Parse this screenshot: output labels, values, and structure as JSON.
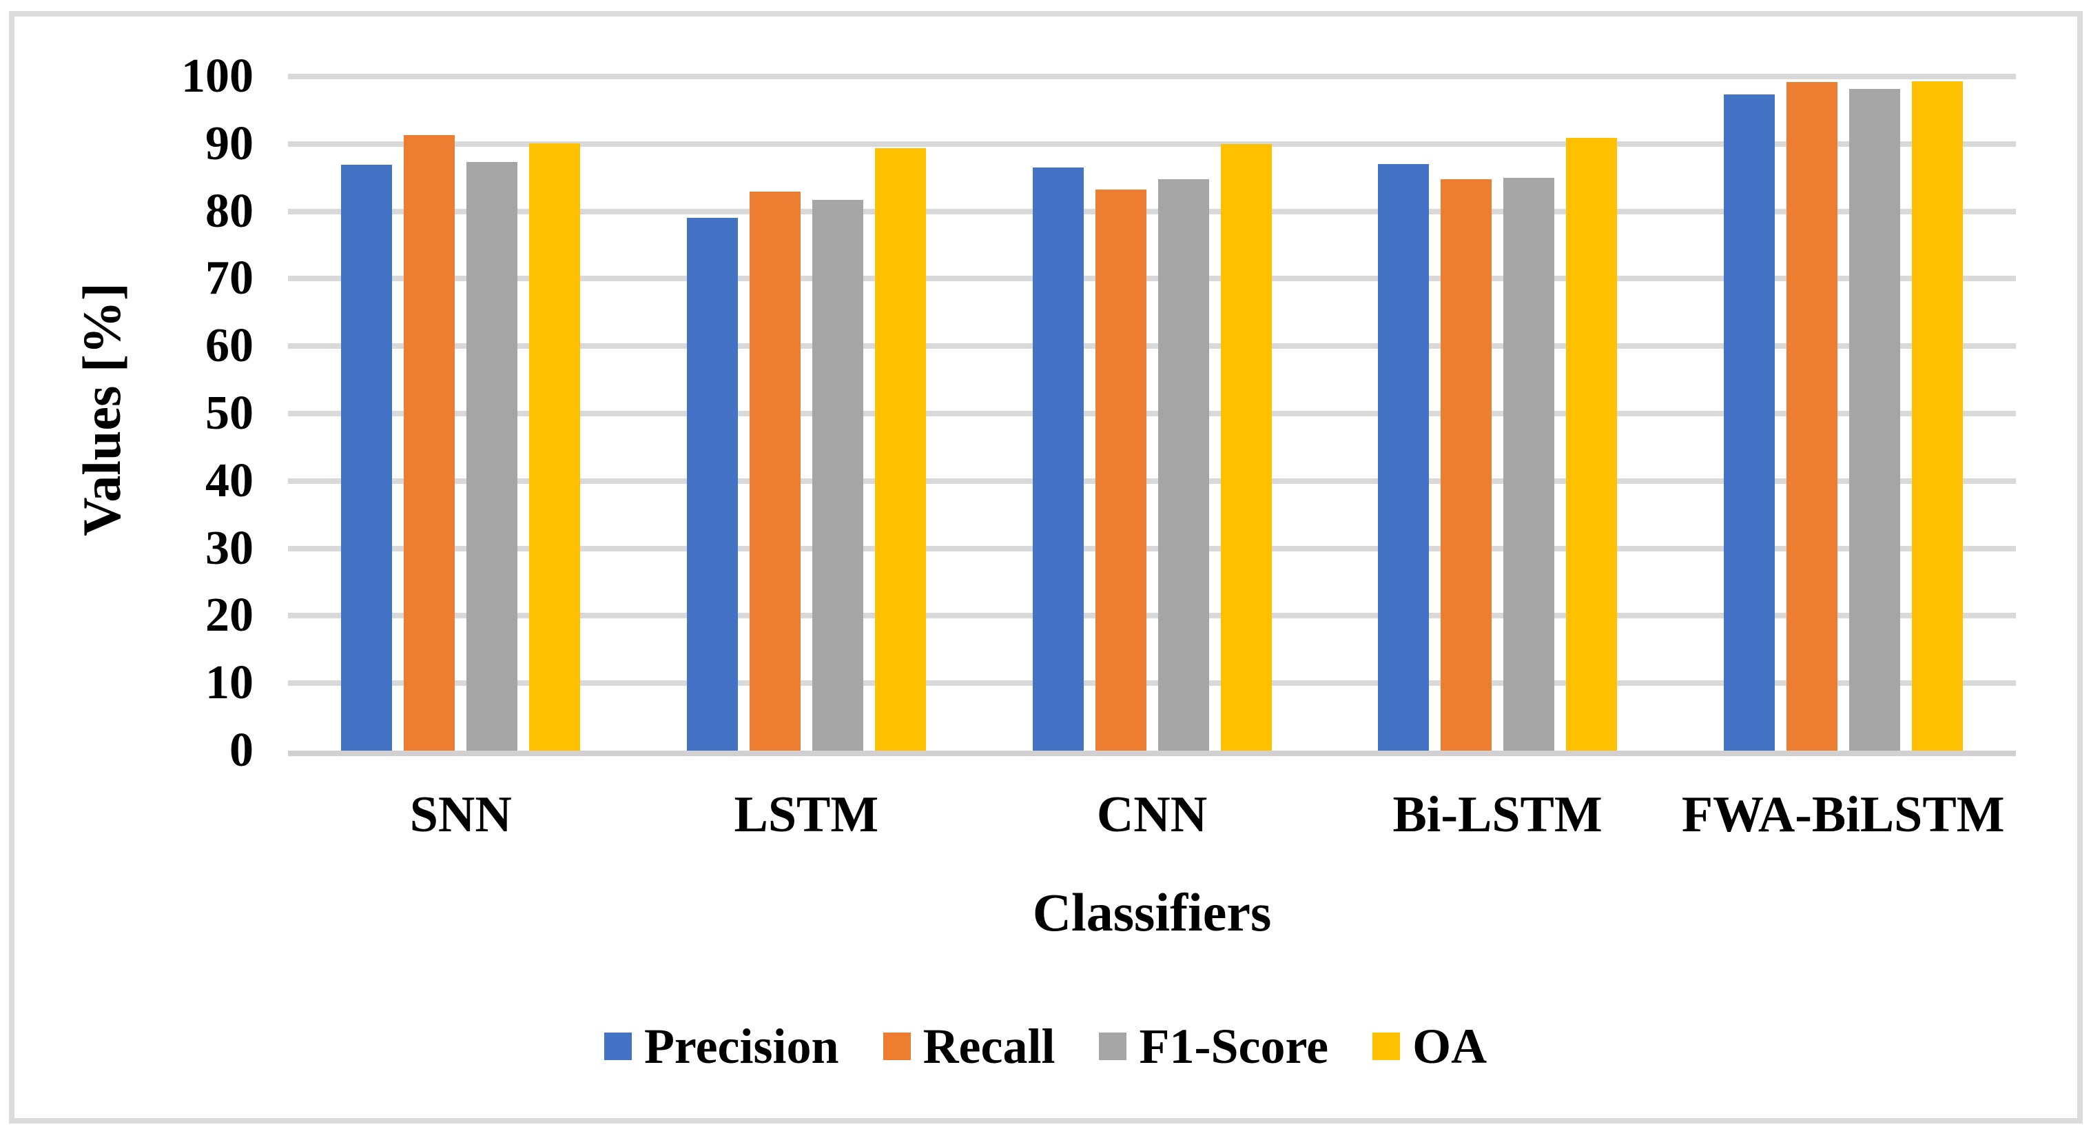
{
  "figure": {
    "background": "#FFFFFF",
    "border_color": "#DBDBDB"
  },
  "chart_data": {
    "type": "bar",
    "title": "",
    "categories": [
      "SNN",
      "LSTM",
      "CNN",
      "Bi-LSTM",
      "FWA-BiLSTM"
    ],
    "series": [
      {
        "name": "Precision",
        "color": "#4472C4",
        "values": [
          86.9,
          79.0,
          86.5,
          87.0,
          97.3
        ]
      },
      {
        "name": "Recall",
        "color": "#ED7D31",
        "values": [
          91.3,
          82.9,
          83.2,
          84.8,
          99.2
        ]
      },
      {
        "name": "F1-Score",
        "color": "#A5A5A5",
        "values": [
          87.3,
          81.7,
          84.8,
          85.0,
          98.2
        ]
      },
      {
        "name": "OA",
        "color": "#FFC000",
        "values": [
          90.1,
          89.4,
          90.0,
          90.9,
          99.3
        ]
      }
    ],
    "xlabel": "Classifiers",
    "ylabel": "Values [%]",
    "ylim": [
      0,
      100
    ],
    "ytick_step": 10,
    "yticks": [
      "0",
      "10",
      "20",
      "30",
      "40",
      "50",
      "60",
      "70",
      "80",
      "90",
      "100"
    ],
    "grid": true,
    "gridline_color": "#D9D9D9",
    "axis_line_color": "#D2D0D0",
    "legend_position": "bottom",
    "legend": [
      "Precision",
      "Recall",
      "F1-Score",
      "OA"
    ]
  }
}
